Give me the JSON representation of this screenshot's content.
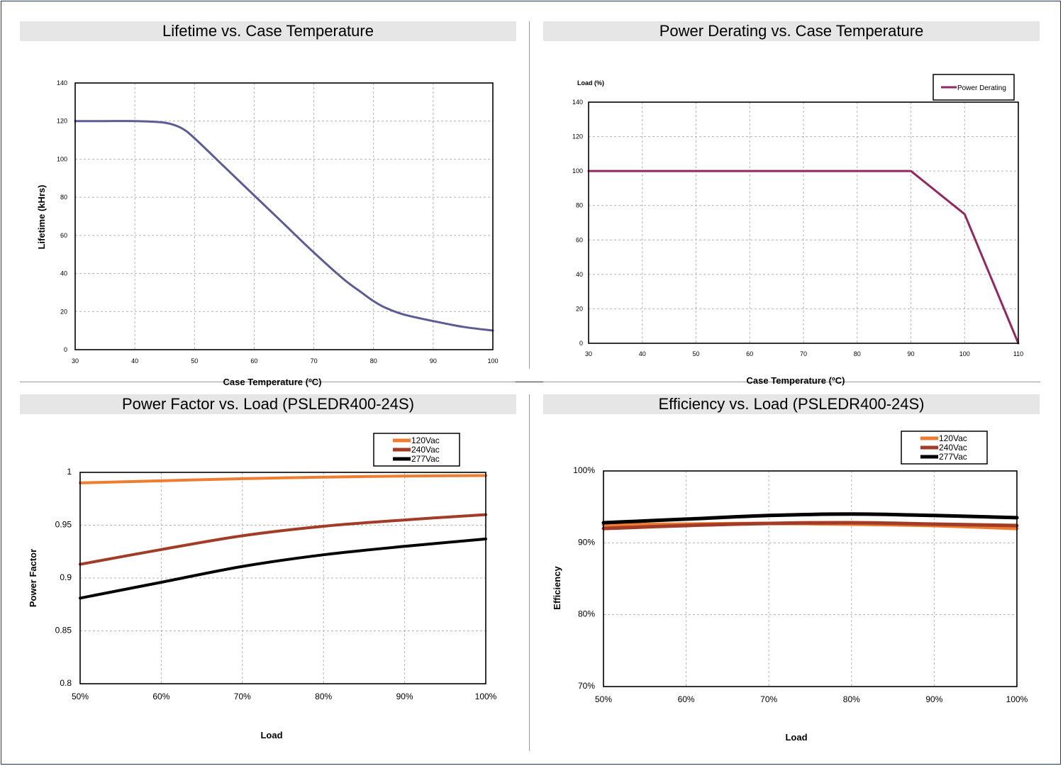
{
  "chart_data": [
    {
      "id": "lifetime",
      "type": "line",
      "title": "Lifetime vs. Case Temperature",
      "xlabel": "Case Temperature (ºC)",
      "ylabel": "Lifetime (kHrs)",
      "xlim": [
        30,
        100
      ],
      "ylim": [
        0,
        140
      ],
      "xticks": [
        "30",
        "40",
        "50",
        "60",
        "70",
        "80",
        "90",
        "100"
      ],
      "yticks": [
        "0",
        "20",
        "40",
        "60",
        "80",
        "100",
        "120",
        "140"
      ],
      "grid": true,
      "series": [
        {
          "color": "#5b5b95",
          "x": [
            30,
            35,
            40,
            44,
            46,
            48,
            50,
            55,
            60,
            65,
            70,
            75,
            78,
            80,
            82,
            85,
            90,
            95,
            100
          ],
          "y": [
            120,
            120,
            120,
            119.5,
            118.5,
            116,
            111,
            96,
            81,
            66,
            51,
            37,
            30,
            25.5,
            22,
            18.5,
            15,
            12,
            10
          ]
        }
      ]
    },
    {
      "id": "derating",
      "type": "line",
      "title": "Power Derating vs. Case Temperature",
      "xlabel": "Case Temperature (ºC)",
      "ylabel": "Load (%)",
      "xlim": [
        30,
        110
      ],
      "ylim": [
        0,
        140
      ],
      "xticks": [
        "30",
        "40",
        "50",
        "60",
        "70",
        "80",
        "90",
        "100",
        "110"
      ],
      "yticks": [
        "0",
        "20",
        "40",
        "60",
        "80",
        "100",
        "120",
        "140"
      ],
      "grid": true,
      "legend": "top-right",
      "series": [
        {
          "name": "Power Derating",
          "color": "#93275f",
          "x": [
            30,
            90,
            100,
            110
          ],
          "y": [
            100,
            100,
            75,
            0
          ]
        }
      ]
    },
    {
      "id": "pf",
      "type": "line",
      "title": "Power Factor vs. Load (PSLEDR400-24S)",
      "xlabel": "Load",
      "ylabel": "Power Factor",
      "xlim": [
        50,
        100
      ],
      "ylim": [
        0.8,
        1
      ],
      "xticks": [
        "50%",
        "60%",
        "70%",
        "80%",
        "90%",
        "100%"
      ],
      "yticks": [
        "0.8",
        "0.85",
        "0.9",
        "0.95",
        "1"
      ],
      "grid": true,
      "legend": "top-right",
      "series": [
        {
          "name": "120Vac",
          "color": "#ee7d31",
          "x": [
            50,
            60,
            70,
            80,
            90,
            100
          ],
          "y": [
            0.99,
            0.992,
            0.994,
            0.9955,
            0.9965,
            0.997
          ]
        },
        {
          "name": "240Vac",
          "color": "#a23c26",
          "x": [
            50,
            60,
            70,
            80,
            90,
            100
          ],
          "y": [
            0.913,
            0.927,
            0.94,
            0.949,
            0.955,
            0.96
          ]
        },
        {
          "name": "277Vac",
          "color": "#000000",
          "x": [
            50,
            60,
            70,
            80,
            90,
            100
          ],
          "y": [
            0.881,
            0.896,
            0.911,
            0.922,
            0.93,
            0.937
          ]
        }
      ]
    },
    {
      "id": "eff",
      "type": "line",
      "title": "Efficiency vs. Load (PSLEDR400-24S)",
      "xlabel": "Load",
      "ylabel": "Efficiency",
      "xlim": [
        50,
        100
      ],
      "ylim": [
        70,
        100
      ],
      "xticks": [
        "50%",
        "60%",
        "70%",
        "80%",
        "90%",
        "100%"
      ],
      "yticks": [
        "70%",
        "80%",
        "90%",
        "100%"
      ],
      "grid": true,
      "legend": "top-right",
      "series": [
        {
          "name": "120Vac",
          "color": "#ee7d31",
          "x": [
            50,
            60,
            70,
            80,
            90,
            100
          ],
          "y": [
            92.5,
            92.6,
            92.7,
            92.6,
            92.4,
            92.0
          ]
        },
        {
          "name": "240Vac",
          "color": "#a23c26",
          "x": [
            50,
            60,
            70,
            80,
            90,
            100
          ],
          "y": [
            92.0,
            92.4,
            92.7,
            92.8,
            92.6,
            92.4
          ]
        },
        {
          "name": "277Vac",
          "color": "#000000",
          "x": [
            50,
            60,
            70,
            80,
            90,
            100
          ],
          "y": [
            92.8,
            93.3,
            93.8,
            94.0,
            93.8,
            93.5
          ]
        }
      ]
    }
  ]
}
